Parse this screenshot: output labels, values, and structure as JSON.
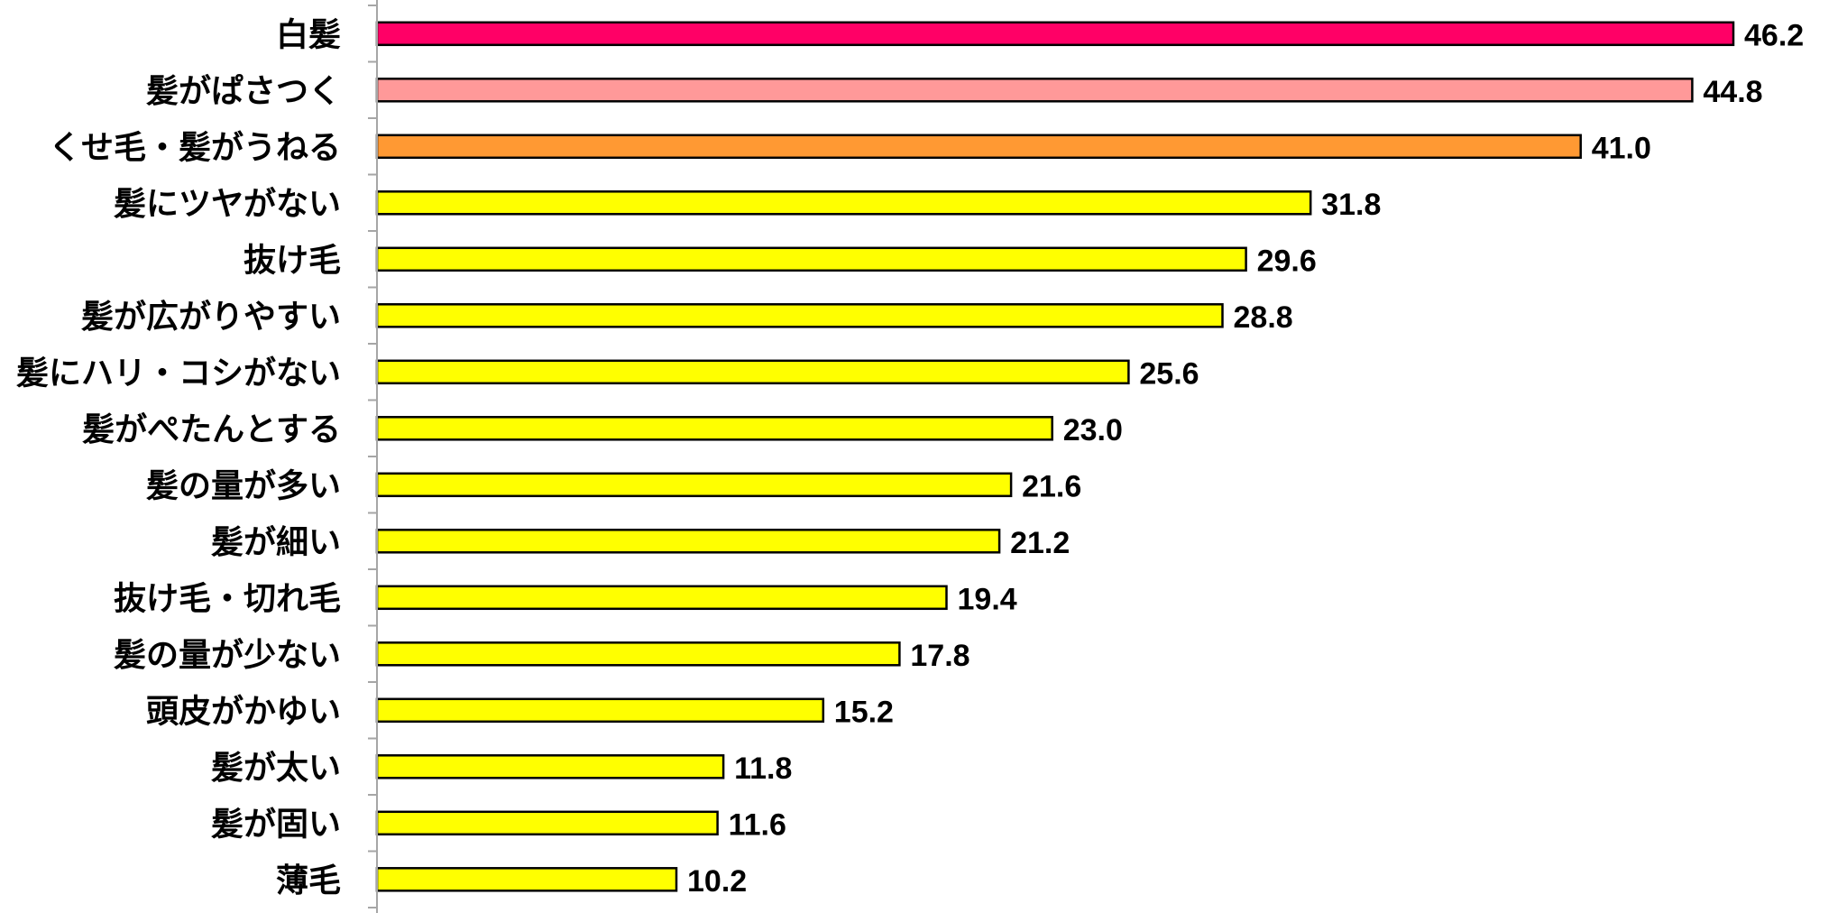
{
  "chart_data": {
    "type": "bar",
    "orientation": "horizontal",
    "categories": [
      "白髪",
      "髪がぱさつく",
      "くせ毛・髪がうねる",
      "髪にツヤがない",
      "抜け毛",
      "髪が広がりやすい",
      "髪にハリ・コシがない",
      "髪がぺたんとする",
      "髪の量が多い",
      "髪が細い",
      "抜け毛・切れ毛",
      "髪の量が少ない",
      "頭皮がかゆい",
      "髪が太い",
      "髪が固い",
      "薄毛"
    ],
    "values": [
      46.2,
      44.8,
      41.0,
      31.8,
      29.6,
      28.8,
      25.6,
      23.0,
      21.6,
      21.2,
      19.4,
      17.8,
      15.2,
      11.8,
      11.6,
      10.2
    ],
    "value_labels": [
      "46.2",
      "44.8",
      "41.0",
      "31.8",
      "29.6",
      "28.8",
      "25.6",
      "23.0",
      "21.6",
      "21.2",
      "19.4",
      "17.8",
      "15.2",
      "11.8",
      "11.6",
      "10.2"
    ],
    "colors": [
      "#ff0066",
      "#ff9999",
      "#ff9933",
      "#ffff00",
      "#ffff00",
      "#ffff00",
      "#ffff00",
      "#ffff00",
      "#ffff00",
      "#ffff00",
      "#ffff00",
      "#ffff00",
      "#ffff00",
      "#ffff00",
      "#ffff00",
      "#ffff00"
    ],
    "xlim": [
      0,
      47
    ],
    "title": "",
    "xlabel": "",
    "ylabel": "",
    "grid": false,
    "legend": "none"
  }
}
